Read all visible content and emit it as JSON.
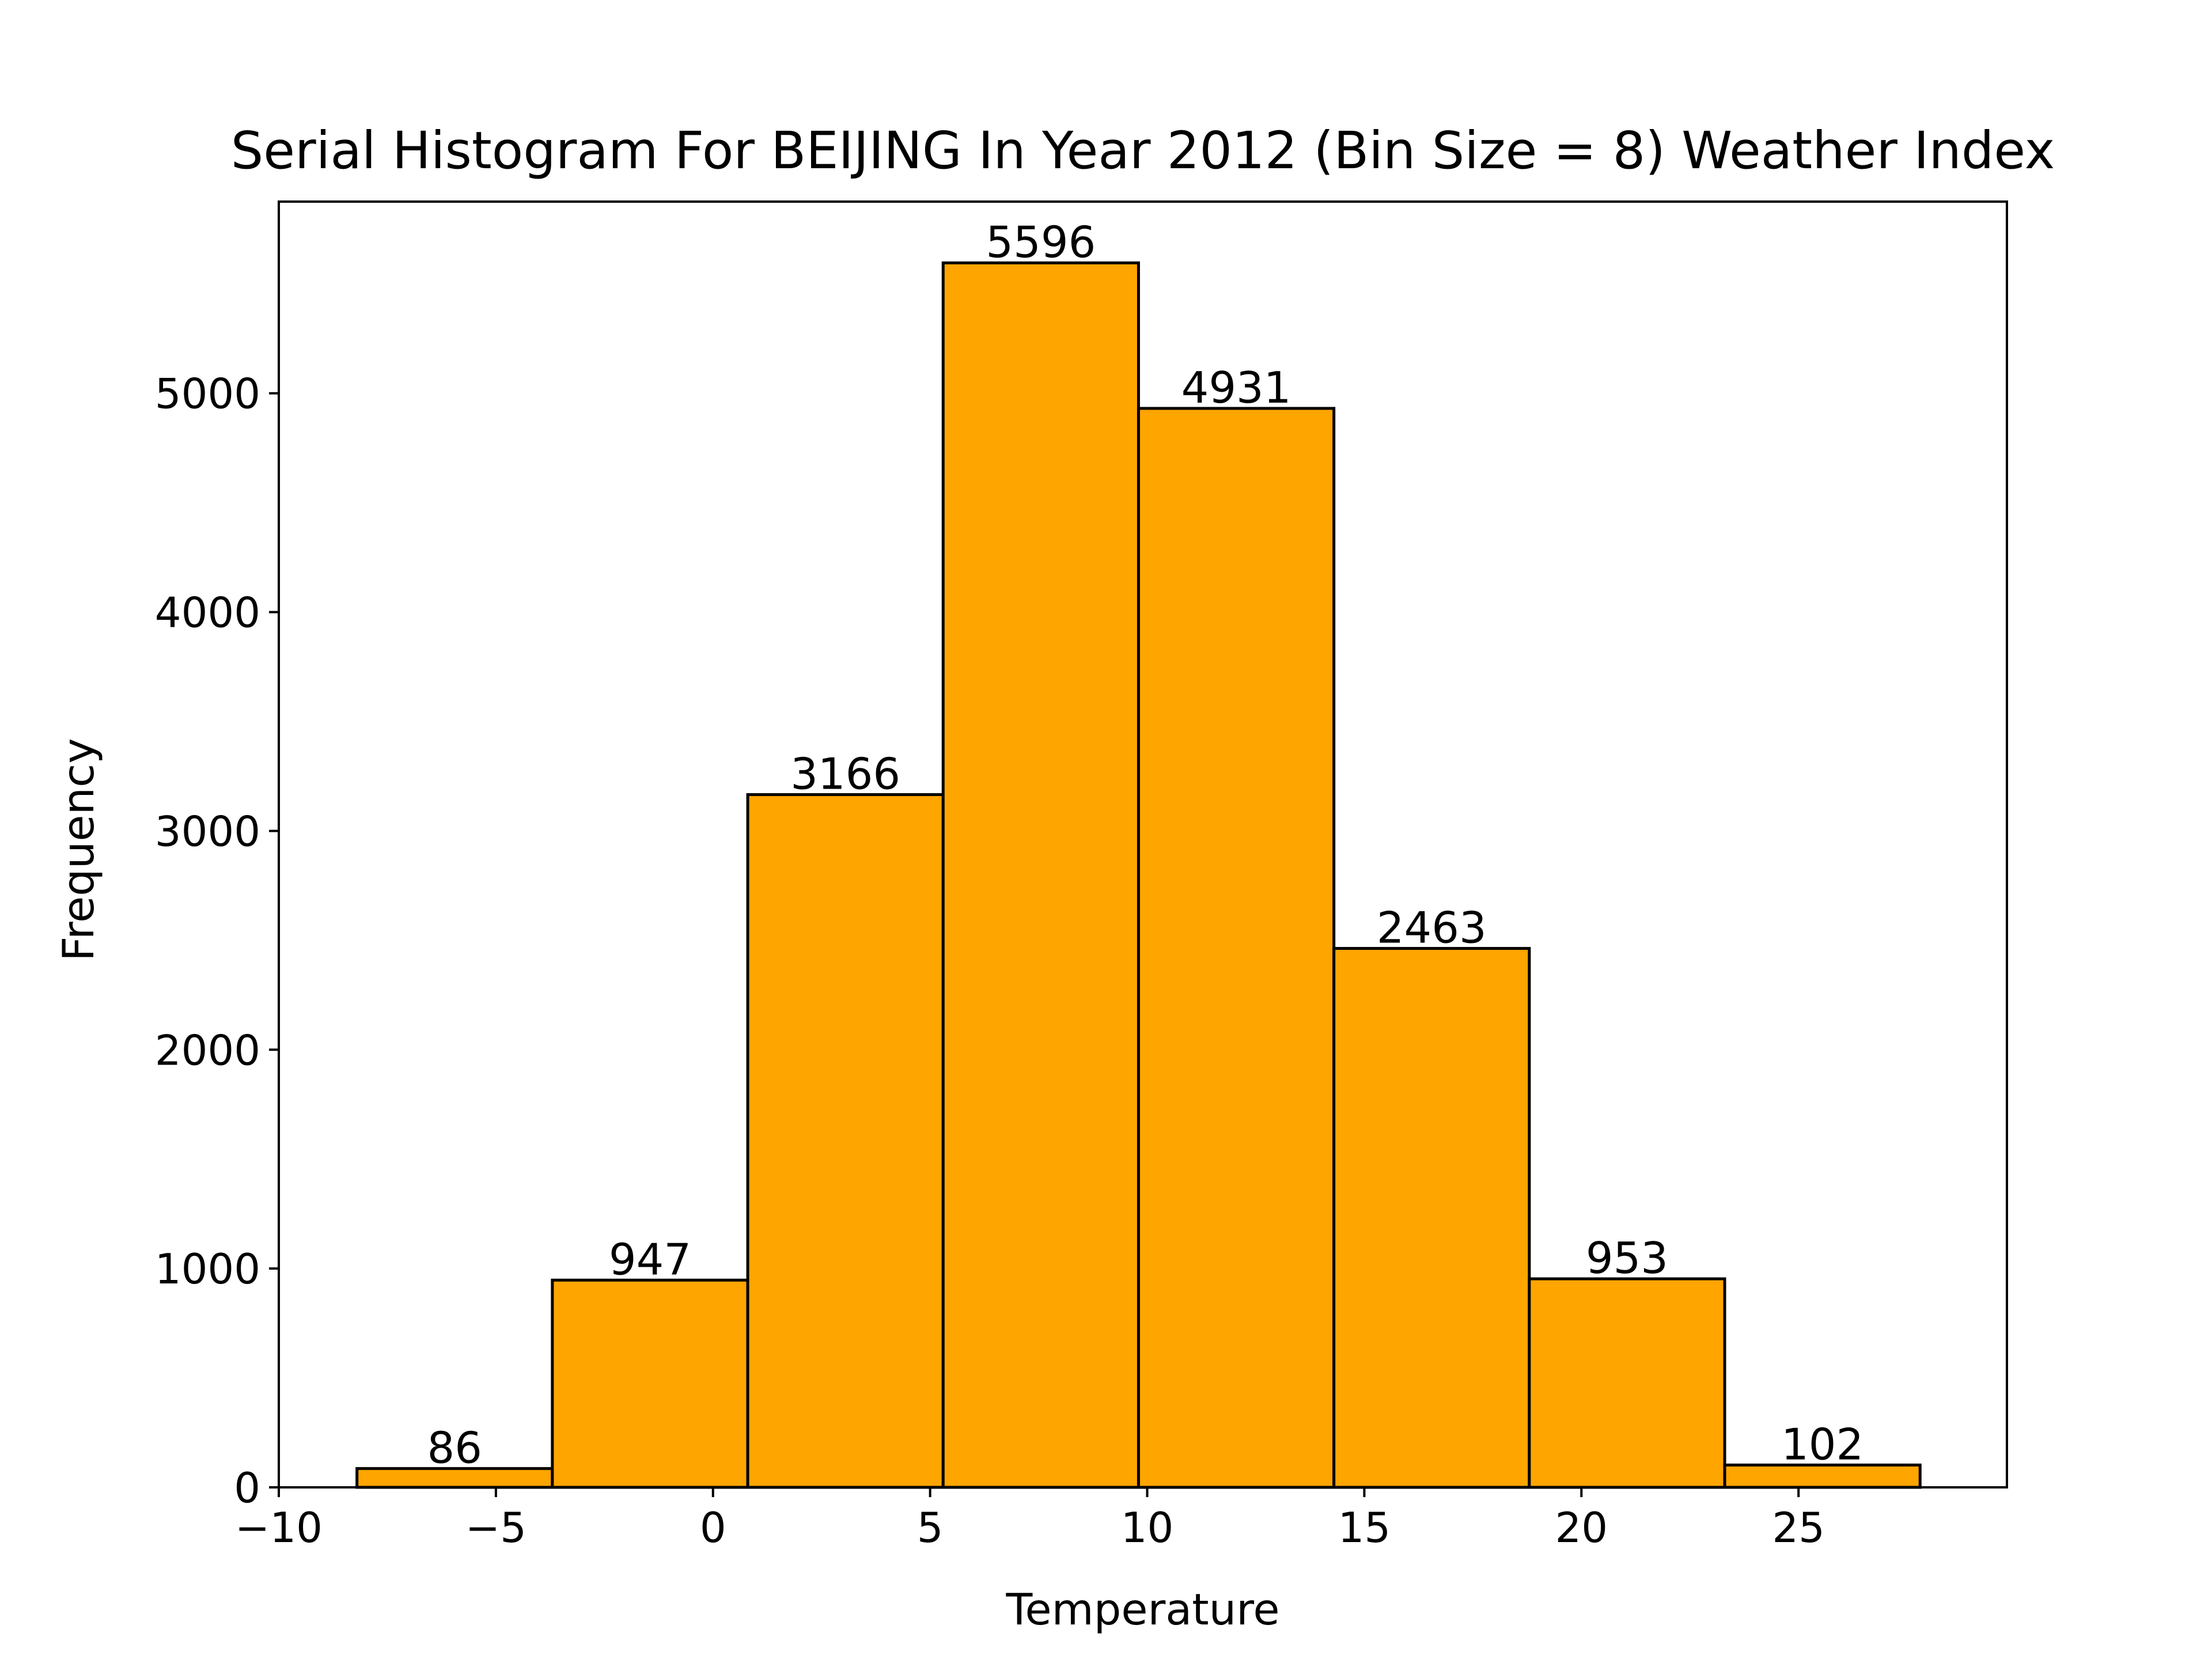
{
  "chart_data": {
    "type": "bar",
    "title": "Serial Histogram For BEIJING In Year 2012 (Bin Size = 8) Weather Index",
    "xlabel": "Temperature",
    "ylabel": "Frequency",
    "bin_edges": [
      -8.2,
      -3.7,
      0.8,
      5.3,
      9.8,
      14.3,
      18.8,
      23.3,
      27.8
    ],
    "values": [
      86,
      947,
      3166,
      5596,
      4931,
      2463,
      953,
      102
    ],
    "data_labels": [
      "86",
      "947",
      "3166",
      "5596",
      "4931",
      "2463",
      "953",
      "102"
    ],
    "xlim": [
      -10,
      29.8
    ],
    "ylim": [
      0,
      5876
    ],
    "x_ticks": [
      -10,
      -5,
      0,
      5,
      10,
      15,
      20,
      25
    ],
    "x_tick_labels": [
      "−10",
      "−5",
      "0",
      "5",
      "10",
      "15",
      "20",
      "25"
    ],
    "y_ticks": [
      0,
      1000,
      2000,
      3000,
      4000,
      5000
    ],
    "y_tick_labels": [
      "0",
      "1000",
      "2000",
      "3000",
      "4000",
      "5000"
    ],
    "grid": false,
    "legend": "none",
    "colors": {
      "bar_fill": "#FFA500",
      "bar_edge": "#000000",
      "axes": "#000000"
    }
  }
}
